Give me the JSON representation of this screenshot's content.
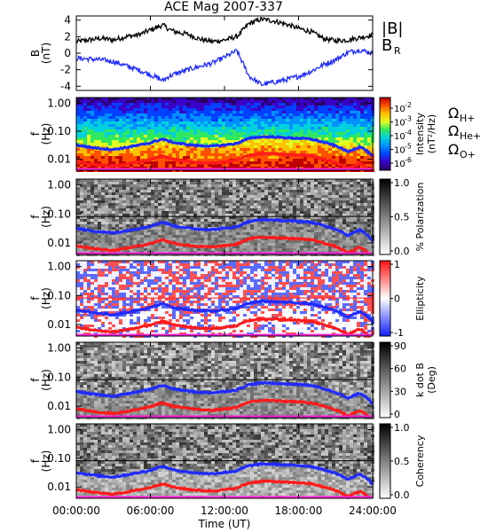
{
  "title": "ACE Mag 2007-337",
  "colors": {
    "total_field": "#000000",
    "radial_field": "#1f2bff",
    "h_plus": "#1f2bff",
    "he_plus": "#ff1a1a",
    "o_plus": "#ff22dd",
    "spectrum_palette": [
      "#2a0060",
      "#3a00c8",
      "#0040ff",
      "#0090ff",
      "#00d0e0",
      "#30e860",
      "#e0ff20",
      "#ffc000",
      "#ff5000",
      "#c00000"
    ],
    "gray_palette": [
      "#ffffff",
      "#000000"
    ],
    "ellipticity_palette": [
      "#1020ff",
      "#ffffff",
      "#ff1010"
    ]
  },
  "chart_data": {
    "type": "line",
    "x_axis": {
      "ticks": [
        "00:00:00",
        "06:00:00",
        "12:00:00",
        "18:00:00",
        "24:00:00"
      ],
      "label": "Time (UT)",
      "range_hours": [
        0,
        24
      ]
    },
    "panels": [
      {
        "id": "field",
        "type": "line",
        "ylabel": "B",
        "yunits": "(nT)",
        "ylim": [
          -4.5,
          4.5
        ],
        "yticks": [
          "-4",
          "-2",
          "0",
          "2",
          "4"
        ],
        "legend": [
          "|B|",
          "B",
          "R"
        ],
        "series": [
          {
            "name": "|B|",
            "x": [
              0,
              1,
              2,
              3,
              4,
              5,
              6,
              7,
              7.5,
              8,
              9,
              10,
              11,
              12,
              13,
              14,
              15,
              16,
              17,
              18,
              19,
              20,
              21,
              22,
              23,
              24
            ],
            "y": [
              1.4,
              1.6,
              1.8,
              1.6,
              2.0,
              2.2,
              2.8,
              3.4,
              2.9,
              2.6,
              2.3,
              1.7,
              1.4,
              1.6,
              2.0,
              3.6,
              4.1,
              3.9,
              3.5,
              3.0,
              2.6,
              1.8,
              1.5,
              1.6,
              1.9,
              2.2
            ]
          },
          {
            "name": "B",
            "x": [
              0,
              1,
              2,
              3,
              4,
              5,
              6,
              7,
              7.5,
              8,
              9,
              10,
              11,
              12,
              13,
              14,
              15,
              16,
              17,
              18,
              19,
              20,
              21,
              22,
              23,
              24
            ],
            "y": [
              -0.6,
              -0.7,
              -0.8,
              -1.0,
              -1.5,
              -2.0,
              -2.6,
              -3.3,
              -2.8,
              -2.5,
              -2.0,
              -1.6,
              -1.2,
              -0.5,
              0.3,
              -2.8,
              -3.8,
              -3.5,
              -3.2,
              -2.8,
              -2.2,
              -1.4,
              -0.8,
              0.1,
              0.4,
              0.0
            ]
          }
        ]
      },
      {
        "id": "power",
        "type": "heatmap",
        "ylabel": "f",
        "yunits": "(Hz)",
        "cbar_label": "Intensity",
        "cbar_units": "(nT²/Hz)",
        "cbar_ticks": [
          "10",
          "10",
          "10",
          "10",
          "10"
        ],
        "cbar_exps": [
          "-2",
          "-3",
          "-4",
          "-5",
          "-6"
        ],
        "legend": [
          "Ω",
          "H+",
          "Ω",
          "He+",
          "Ω",
          "O+"
        ]
      },
      {
        "id": "polarization",
        "type": "heatmap",
        "ylabel": "f",
        "yunits": "(Hz)",
        "cbar_label": "% Polarization",
        "cbar_ticks": [
          "1.0",
          "0.5",
          "0.0"
        ]
      },
      {
        "id": "ellipticity",
        "type": "heatmap",
        "ylabel": "f",
        "yunits": "(Hz)",
        "cbar_label": "Ellipticity",
        "cbar_ticks": [
          "1",
          "0",
          "-1"
        ]
      },
      {
        "id": "kdotb",
        "type": "heatmap",
        "ylabel": "f",
        "yunits": "(Hz)",
        "cbar_label": "k dot B",
        "cbar_units": "(Deg)",
        "cbar_ticks": [
          "90",
          "60",
          "30",
          "0"
        ]
      },
      {
        "id": "coherency",
        "type": "heatmap",
        "ylabel": "f",
        "yunits": "(Hz)",
        "cbar_label": "Coherency",
        "cbar_ticks": [
          "1.0",
          "0.5",
          "0.0"
        ]
      }
    ],
    "frequency_axis": {
      "ticks": [
        "1.00",
        "0.10",
        "0.01"
      ],
      "scale": "log",
      "range_hz": [
        0.004,
        1.6
      ]
    },
    "gyrofrequency_lines": [
      {
        "name": "H+",
        "x": [
          0,
          1,
          2,
          3,
          4,
          5,
          6,
          7,
          7.5,
          8,
          9,
          10,
          11,
          12,
          13,
          14,
          15,
          16,
          17,
          18,
          19,
          20,
          21,
          22,
          23,
          24
        ],
        "f": [
          0.032,
          0.027,
          0.024,
          0.022,
          0.026,
          0.031,
          0.038,
          0.052,
          0.044,
          0.038,
          0.033,
          0.03,
          0.029,
          0.032,
          0.036,
          0.055,
          0.063,
          0.062,
          0.058,
          0.056,
          0.052,
          0.04,
          0.03,
          0.018,
          0.028,
          0.012
        ]
      },
      {
        "name": "He+",
        "x": [
          0,
          1,
          2,
          3,
          4,
          5,
          6,
          7,
          7.5,
          8,
          9,
          10,
          11,
          12,
          13,
          14,
          15,
          16,
          17,
          18,
          19,
          20,
          21,
          22,
          23,
          24
        ],
        "f": [
          0.008,
          0.0068,
          0.006,
          0.0056,
          0.0065,
          0.0078,
          0.0095,
          0.013,
          0.011,
          0.0095,
          0.0083,
          0.0075,
          0.0072,
          0.008,
          0.009,
          0.0138,
          0.0158,
          0.0155,
          0.0145,
          0.014,
          0.013,
          0.01,
          0.0075,
          0.0045,
          0.007,
          0.003
        ]
      },
      {
        "name": "O+",
        "x": [
          0,
          1,
          2,
          3,
          4,
          5,
          6,
          7,
          7.5,
          8,
          9,
          10,
          11,
          12,
          13,
          14,
          15,
          16,
          17,
          18,
          19,
          20,
          21,
          22,
          23,
          24
        ],
        "f": [
          0.002,
          0.0017,
          0.0015,
          0.0014,
          0.0016,
          0.002,
          0.0024,
          0.0033,
          0.0028,
          0.0024,
          0.0021,
          0.0019,
          0.0018,
          0.002,
          0.0023,
          0.0035,
          0.004,
          0.0039,
          0.0036,
          0.0035,
          0.0033,
          0.0025,
          0.0019,
          0.0011,
          0.0018,
          0.0008
        ]
      }
    ],
    "reference_line_hz": 0.082
  }
}
